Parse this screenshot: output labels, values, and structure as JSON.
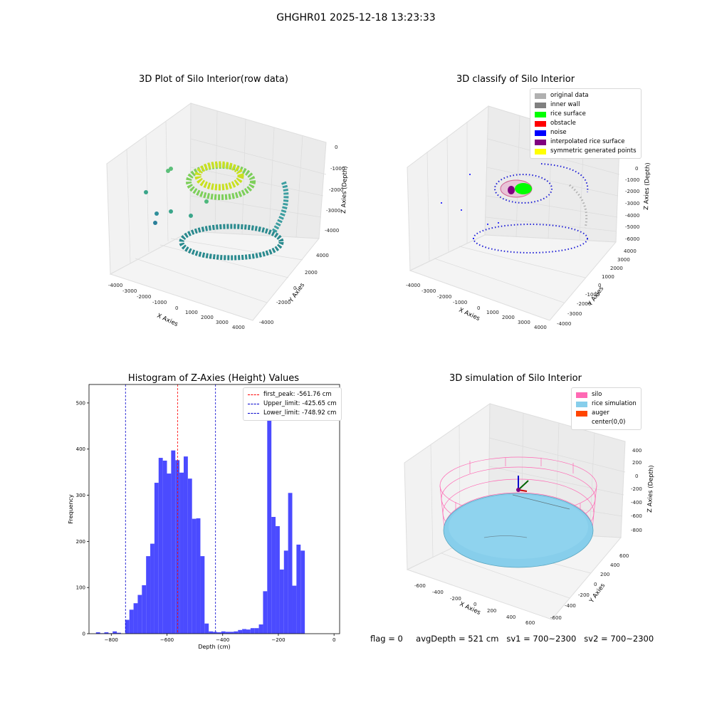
{
  "figure": {
    "suptitle": "GHGHR01 2025-12-18 13:23:33"
  },
  "panels": {
    "raw": {
      "title": "3D Plot of Silo Interior(row data)",
      "xlabel": "X Axies",
      "ylabel": "Y Axies",
      "zlabel": "Z Axies (Depth)",
      "xticks": [
        "-4000",
        "-3000",
        "-2000",
        "-1000",
        "0",
        "1000",
        "2000",
        "3000",
        "4000"
      ],
      "yticks": [
        "-4000",
        "-2000",
        "0",
        "2000",
        "4000"
      ],
      "zticks": [
        "0",
        "-1000",
        "-2000",
        "-3000",
        "-4000"
      ]
    },
    "classify": {
      "title": "3D classify of Silo Interior",
      "xlabel": "X Axies",
      "ylabel": "Y Axies",
      "zlabel": "Z Axies (Depth)",
      "xticks": [
        "-4000",
        "-3000",
        "-2000",
        "-1000",
        "0",
        "1000",
        "2000",
        "3000",
        "4000"
      ],
      "yticks": [
        "-4000",
        "-3000",
        "-2000",
        "-1000",
        "0",
        "1000",
        "2000",
        "3000",
        "4000"
      ],
      "zticks": [
        "2000",
        "1000",
        "0",
        "-1000",
        "-2000",
        "-3000",
        "-4000",
        "-5000",
        "-6000"
      ],
      "legend": [
        {
          "label": "original data",
          "color": "#b0b0b0"
        },
        {
          "label": "inner wall",
          "color": "#808080"
        },
        {
          "label": "rice surface",
          "color": "#00ff00"
        },
        {
          "label": "obstacle",
          "color": "#ff0000"
        },
        {
          "label": "noise",
          "color": "#0000ff"
        },
        {
          "label": "interpolated rice surface",
          "color": "#800080"
        },
        {
          "label": "symmetric generated points",
          "color": "#ffff00"
        }
      ]
    },
    "simulation": {
      "title": "3D simulation of Silo Interior",
      "xlabel": "X Axies",
      "ylabel": "Y Axies",
      "zlabel": "Z Axies (Depth)",
      "xticks": [
        "-600",
        "-400",
        "-200",
        "0",
        "200",
        "400",
        "600"
      ],
      "yticks": [
        "-600",
        "-400",
        "-200",
        "0",
        "200",
        "400",
        "600"
      ],
      "zticks": [
        "400",
        "200",
        "0",
        "-200",
        "-400",
        "-600",
        "-800"
      ],
      "legend": [
        {
          "label": "silo",
          "color": "#ff69b4"
        },
        {
          "label": "rice simulation",
          "color": "#87ceeb"
        },
        {
          "label": "auger",
          "color": "#ff4500"
        },
        {
          "label": "center(0,0)",
          "color": ""
        }
      ]
    }
  },
  "chart_data": {
    "type": "bar",
    "title": "Histogram of Z-Axies (Height) Values",
    "xlabel": "Depth (cm)",
    "ylabel": "Frequency",
    "xlim": [
      -880,
      20
    ],
    "ylim": [
      0,
      540
    ],
    "xticks": [
      -800,
      -600,
      -400,
      -200,
      0
    ],
    "yticks": [
      0,
      100,
      200,
      300,
      400,
      500
    ],
    "bin_width": 15,
    "bin_start": [
      -855,
      -840,
      -825,
      -810,
      -795,
      -780,
      -765,
      -750,
      -735,
      -720,
      -705,
      -690,
      -675,
      -660,
      -645,
      -630,
      -615,
      -600,
      -585,
      -570,
      -555,
      -540,
      -525,
      -510,
      -495,
      -480,
      -465,
      -450,
      -435,
      -420,
      -405,
      -390,
      -375,
      -360,
      -345,
      -330,
      -315,
      -300,
      -285,
      -270,
      -255,
      -240,
      -225,
      -210,
      -195,
      -180,
      -165,
      -150,
      -135,
      -120,
      -105,
      -90,
      -75,
      -60,
      -45,
      -30,
      -15
    ],
    "values": [
      3,
      1,
      3,
      1,
      5,
      2,
      0,
      30,
      52,
      66,
      84,
      105,
      168,
      195,
      327,
      381,
      375,
      347,
      397,
      376,
      349,
      384,
      336,
      249,
      250,
      168,
      22,
      5,
      4,
      3,
      5,
      4,
      4,
      5,
      8,
      10,
      9,
      12,
      12,
      20,
      92,
      520,
      253,
      233,
      139,
      180,
      305,
      104,
      193,
      180,
      0,
      0,
      0,
      0,
      0,
      0,
      0
    ],
    "reference_lines": [
      {
        "label": "first_peak: -561.76 cm",
        "value": -561.76,
        "color": "#ff0000"
      },
      {
        "label": "Upper_limit: -425.65 cm",
        "value": -425.65,
        "color": "#0000cc"
      },
      {
        "label": "Lower_limit: -748.92 cm",
        "value": -748.92,
        "color": "#0000cc"
      }
    ],
    "bar_color": "#4b4bff"
  },
  "status": {
    "flag": "flag = 0",
    "avg_depth": "avgDepth = 521 cm",
    "sv1": "sv1 = 700~2300",
    "sv2": "sv2 = 700~2300"
  }
}
